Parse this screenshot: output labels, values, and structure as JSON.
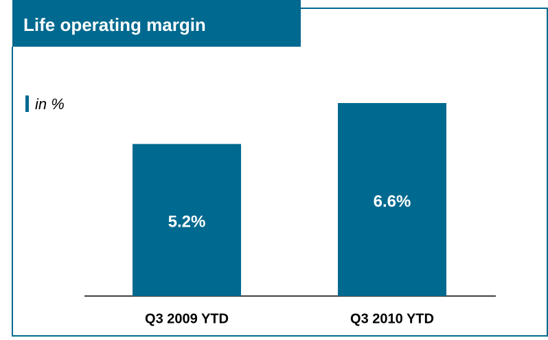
{
  "chart_data": {
    "type": "bar",
    "title": "Life operating margin",
    "subtitle": "in %",
    "categories": [
      "Q3 2009 YTD",
      "Q3 2010 YTD"
    ],
    "values": [
      5.2,
      6.6
    ],
    "value_labels": [
      "5.2%",
      "6.6%"
    ],
    "color": "#00698f",
    "ylim": [
      0,
      7
    ]
  }
}
